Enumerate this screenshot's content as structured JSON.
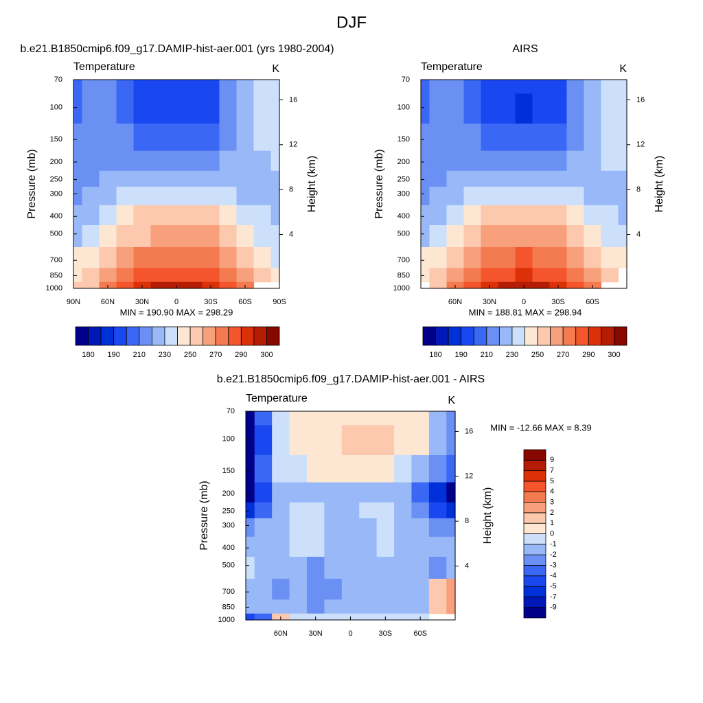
{
  "title": "DJF",
  "chart_data": [
    {
      "type": "contour",
      "title": "b.e21.B1850cmip6.f09_g17.DAMIP-hist-aer.001 (yrs 1980-2004)",
      "left_label": "Temperature",
      "right_label": "K",
      "ylabel": "Pressure (mb)",
      "y2label": "Height (km)",
      "stats": "MIN = 190.90  MAX = 298.29",
      "x": [
        90,
        75,
        60,
        45,
        30,
        15,
        0,
        -15,
        -30,
        -45,
        -60,
        -75,
        -90
      ],
      "y": [
        70,
        100,
        150,
        200,
        250,
        300,
        400,
        500,
        700,
        850,
        1000
      ],
      "z": [
        [
          200,
          210,
          212,
          200,
          194,
          194,
          194,
          194,
          196,
          210,
          225,
          232,
          235
        ],
        [
          205,
          212,
          214,
          205,
          197,
          194,
          193,
          194,
          198,
          212,
          225,
          232,
          235
        ],
        [
          210,
          214,
          216,
          212,
          205,
          203,
          203,
          203,
          207,
          215,
          224,
          230,
          233
        ],
        [
          212,
          215,
          218,
          218,
          215,
          212,
          212,
          213,
          216,
          220,
          226,
          228,
          230
        ],
        [
          212,
          215,
          220,
          224,
          226,
          225,
          225,
          225,
          226,
          225,
          226,
          228,
          228
        ],
        [
          216,
          220,
          226,
          232,
          236,
          238,
          238,
          238,
          236,
          232,
          228,
          228,
          226
        ],
        [
          222,
          228,
          236,
          244,
          250,
          252,
          253,
          252,
          250,
          243,
          236,
          232,
          228
        ],
        [
          228,
          234,
          243,
          252,
          259,
          264,
          265,
          264,
          260,
          252,
          244,
          238,
          232
        ],
        [
          240,
          246,
          256,
          266,
          273,
          278,
          279,
          278,
          273,
          265,
          254,
          245,
          238
        ],
        [
          245,
          252,
          262,
          274,
          283,
          288,
          289,
          288,
          284,
          275,
          262,
          250,
          242
        ],
        [
          250,
          258,
          270,
          282,
          292,
          298,
          299,
          298,
          294,
          284,
          270,
          null,
          null
        ]
      ],
      "xlim": [
        90,
        -90
      ],
      "xticks": [
        {
          "value": 90,
          "label": "90N"
        },
        {
          "value": 60,
          "label": "60N"
        },
        {
          "value": 30,
          "label": "30N"
        },
        0,
        {
          "value": -30,
          "label": "30S"
        },
        {
          "value": -60,
          "label": "60S"
        },
        {
          "value": -90,
          "label": "90S"
        }
      ],
      "ylim": [
        1000,
        70
      ],
      "log_y": true,
      "yticks": [
        70,
        100,
        150,
        200,
        250,
        300,
        400,
        500,
        700,
        850,
        1000
      ],
      "y2lim": [
        -0.8,
        17.8
      ],
      "y2ticks": [
        4,
        8,
        12,
        16
      ],
      "colorbar": {
        "orientation": "horizontal",
        "levels": [
          180,
          185,
          190,
          200,
          210,
          220,
          230,
          240,
          250,
          260,
          270,
          280,
          290,
          295,
          300
        ],
        "colors": [
          "#00008b",
          "#0018b8",
          "#0030d8",
          "#1a48f0",
          "#3a68f4",
          "#6a90f4",
          "#98b8f8",
          "#cce0fc",
          "#fde6d2",
          "#fcc8ae",
          "#f8a07c",
          "#f47a50",
          "#f4552c",
          "#dc3008",
          "#b41c04",
          "#860800"
        ]
      }
    },
    {
      "type": "contour",
      "title": "AIRS",
      "left_label": "Temperature",
      "right_label": "K",
      "ylabel": "Pressure (mb)",
      "y2label": "Height (km)",
      "stats": "MIN = 188.81  MAX = 298.94",
      "x": [
        90,
        75,
        60,
        45,
        30,
        15,
        0,
        -15,
        -30,
        -45,
        -60,
        -75,
        -90
      ],
      "y": [
        70,
        100,
        150,
        200,
        250,
        300,
        400,
        500,
        700,
        850,
        1000
      ],
      "z": [
        [
          202,
          210,
          212,
          200,
          194,
          193,
          193,
          193,
          196,
          210,
          225,
          232,
          236
        ],
        [
          205,
          212,
          214,
          204,
          196,
          192,
          189,
          192,
          197,
          212,
          225,
          232,
          235
        ],
        [
          210,
          214,
          216,
          212,
          205,
          203,
          202,
          203,
          207,
          215,
          224,
          230,
          233
        ],
        [
          212,
          215,
          218,
          218,
          215,
          212,
          212,
          213,
          216,
          221,
          226,
          230,
          231
        ],
        [
          213,
          216,
          220,
          224,
          226,
          225,
          225,
          225,
          226,
          226,
          227,
          229,
          229
        ],
        [
          217,
          221,
          226,
          232,
          236,
          238,
          238,
          238,
          236,
          233,
          229,
          229,
          227
        ],
        [
          223,
          229,
          237,
          245,
          251,
          253,
          254,
          253,
          251,
          244,
          237,
          233,
          229
        ],
        [
          229,
          235,
          244,
          253,
          260,
          265,
          266,
          265,
          261,
          253,
          245,
          239,
          233
        ],
        [
          241,
          247,
          257,
          267,
          274,
          279,
          280,
          279,
          274,
          266,
          256,
          246,
          240
        ],
        [
          247,
          253,
          264,
          275,
          284,
          289,
          290,
          289,
          285,
          276,
          263,
          251,
          null
        ],
        [
          null,
          259,
          270,
          283,
          293,
          298,
          299,
          298,
          294,
          285,
          271,
          null,
          null
        ]
      ],
      "xlim": [
        90,
        -90
      ],
      "xticks": [
        {
          "value": 60,
          "label": "60N"
        },
        {
          "value": 30,
          "label": "30N"
        },
        0,
        {
          "value": -30,
          "label": "30S"
        },
        {
          "value": -60,
          "label": "60S"
        }
      ],
      "ylim": [
        1000,
        70
      ],
      "log_y": true,
      "yticks": [
        70,
        100,
        150,
        200,
        250,
        300,
        400,
        500,
        700,
        850,
        1000
      ],
      "y2lim": [
        -0.8,
        17.8
      ],
      "y2ticks": [
        4,
        8,
        12,
        16
      ],
      "colorbar": {
        "orientation": "horizontal",
        "levels": [
          180,
          185,
          190,
          200,
          210,
          220,
          230,
          240,
          250,
          260,
          270,
          280,
          290,
          295,
          300
        ],
        "colors": [
          "#00008b",
          "#0018b8",
          "#0030d8",
          "#1a48f0",
          "#3a68f4",
          "#6a90f4",
          "#98b8f8",
          "#cce0fc",
          "#fde6d2",
          "#fcc8ae",
          "#f8a07c",
          "#f47a50",
          "#f4552c",
          "#dc3008",
          "#b41c04",
          "#860800"
        ]
      }
    },
    {
      "type": "contour",
      "title": "b.e21.B1850cmip6.f09_g17.DAMIP-hist-aer.001 - AIRS",
      "left_label": "Temperature",
      "right_label": "K",
      "ylabel": "Pressure (mb)",
      "y2label": "Height (km)",
      "stats": "MIN = -12.66  MAX =   8.39",
      "x": [
        90,
        75,
        60,
        45,
        30,
        15,
        0,
        -15,
        -30,
        -45,
        -60,
        -75,
        -90
      ],
      "y": [
        70,
        100,
        150,
        200,
        250,
        300,
        400,
        500,
        700,
        850,
        1000
      ],
      "z": [
        [
          -9.5,
          -4,
          -1,
          0.5,
          0.5,
          0.5,
          0.8,
          0.8,
          0.8,
          0.5,
          0.5,
          -2,
          -3
        ],
        [
          -9.5,
          -5,
          -1,
          0.5,
          0.5,
          0.8,
          1.2,
          1.5,
          1,
          0.8,
          0.5,
          -2,
          -3
        ],
        [
          -9.5,
          -4,
          -1,
          -0.5,
          0.3,
          0.3,
          0.3,
          0.3,
          0.3,
          -0.5,
          -1.5,
          -3,
          -4
        ],
        [
          -9.5,
          -5,
          -1.5,
          -1.5,
          -1.2,
          -1.5,
          -1.5,
          -1.5,
          -1.2,
          -2,
          -4,
          -7,
          -9.5
        ],
        [
          -7,
          -4,
          -1.5,
          -0.5,
          -0.8,
          -1.2,
          -1.5,
          -0.5,
          -0.8,
          -1.5,
          -3,
          -5,
          -7
        ],
        [
          -3,
          -1.5,
          -1.5,
          -0.5,
          -0.5,
          -1.5,
          -1.5,
          -1.5,
          -0.5,
          -1.5,
          -2,
          -3,
          -3
        ],
        [
          -1.5,
          -1.5,
          -1.5,
          -0.8,
          -0.8,
          -1.5,
          -1.5,
          -1.5,
          -0.8,
          -1.2,
          -1.5,
          -2,
          -2
        ],
        [
          -0.8,
          -1.5,
          -1.5,
          -1.5,
          -2.5,
          -1.5,
          -1.5,
          -1.5,
          -1.5,
          -1.5,
          -1.5,
          -2.5,
          -1.5
        ],
        [
          -1.5,
          -1.5,
          -2.5,
          -1.5,
          -2.5,
          -2.5,
          -1.5,
          -1.5,
          -1.5,
          -1.5,
          -1.5,
          1.5,
          2
        ],
        [
          -1.5,
          -1.5,
          -1.5,
          -1.5,
          -2.5,
          -1.5,
          -1.5,
          -1.5,
          -1.5,
          -1.5,
          -1.5,
          1.5,
          2.5
        ],
        [
          -5,
          -4,
          1.5,
          -1,
          -0.5,
          -0.5,
          -0.8,
          -0.8,
          -0.5,
          -0.5,
          -0.8,
          null,
          null
        ]
      ],
      "xlim": [
        90,
        -90
      ],
      "xticks": [
        {
          "value": 60,
          "label": "60N"
        },
        {
          "value": 30,
          "label": "30N"
        },
        0,
        {
          "value": -30,
          "label": "30S"
        },
        {
          "value": -60,
          "label": "60S"
        }
      ],
      "ylim": [
        1000,
        70
      ],
      "log_y": true,
      "yticks": [
        70,
        100,
        150,
        200,
        250,
        300,
        400,
        500,
        700,
        850,
        1000
      ],
      "y2lim": [
        -0.8,
        17.8
      ],
      "y2ticks": [
        4,
        8,
        12,
        16
      ],
      "colorbar": {
        "orientation": "vertical",
        "levels": [
          -9,
          -7,
          -5,
          -4,
          -3,
          -2,
          -1,
          0,
          1,
          2,
          3,
          4,
          5,
          7,
          9
        ],
        "colors": [
          "#00008b",
          "#0018b8",
          "#0030d8",
          "#1a48f0",
          "#3a68f4",
          "#6a90f4",
          "#98b8f8",
          "#cce0fc",
          "#fde6d2",
          "#fcc8ae",
          "#f8a07c",
          "#f47a50",
          "#f4552c",
          "#dc3008",
          "#b41c04",
          "#860800"
        ]
      }
    }
  ]
}
